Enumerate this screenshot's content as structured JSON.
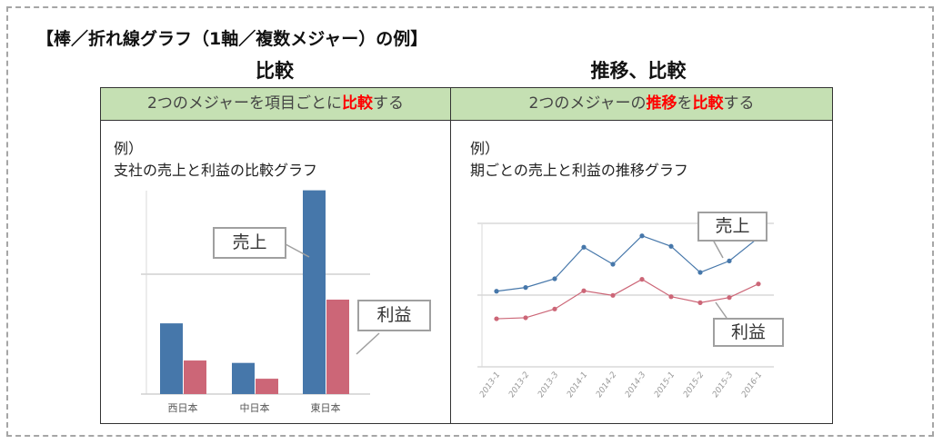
{
  "title": "【棒／折れ線グラフ（1軸／複数メジャー）の例】",
  "left": {
    "heading": "比較",
    "header_segments": [
      {
        "text": "2つのメジャーを項目ごとに",
        "highlight": false
      },
      {
        "text": "比較",
        "highlight": true
      },
      {
        "text": "する",
        "highlight": false
      }
    ],
    "example_label": "例）",
    "example_title": "支社の売上と利益の比較グラフ",
    "callout_sales": "売上",
    "callout_profit": "利益"
  },
  "right": {
    "heading": "推移、比較",
    "header_segments": [
      {
        "text": "2つのメジャーの",
        "highlight": false
      },
      {
        "text": "推移",
        "highlight": true
      },
      {
        "text": "を",
        "highlight": false
      },
      {
        "text": "比較",
        "highlight": true
      },
      {
        "text": "する",
        "highlight": false
      }
    ],
    "example_label": "例）",
    "example_title": "期ごとの売上と利益の推移グラフ",
    "callout_sales": "売上",
    "callout_profit": "利益"
  },
  "colors": {
    "header_bg": "#c5e0b3",
    "highlight": "#ff0000",
    "sales": "#4677aa",
    "profit": "#cc6677"
  },
  "chart_data": [
    {
      "type": "bar",
      "categories": [
        "西日本",
        "中日本",
        "東日本"
      ],
      "series": [
        {
          "name": "売上",
          "values": [
            29.5,
            13,
            85
          ]
        },
        {
          "name": "利益",
          "values": [
            14,
            6.4,
            39.4
          ]
        }
      ],
      "ylim": [
        0,
        85
      ],
      "grid": true
    },
    {
      "type": "line",
      "categories": [
        "2013-1",
        "2013-2",
        "2013-3",
        "2014-1",
        "2014-2",
        "2014-3",
        "2015-1",
        "2015-2",
        "2015-3",
        "2016-1"
      ],
      "series": [
        {
          "name": "売上",
          "values": [
            52.7,
            55.3,
            61.4,
            83.4,
            71.5,
            91.3,
            84,
            65.8,
            73.8,
            90
          ]
        },
        {
          "name": "利益",
          "values": [
            33.5,
            34.2,
            40.3,
            53,
            49.8,
            61,
            48.9,
            44.7,
            48.3,
            57.8
          ]
        }
      ],
      "ylim": [
        0,
        100
      ],
      "grid": true
    }
  ]
}
